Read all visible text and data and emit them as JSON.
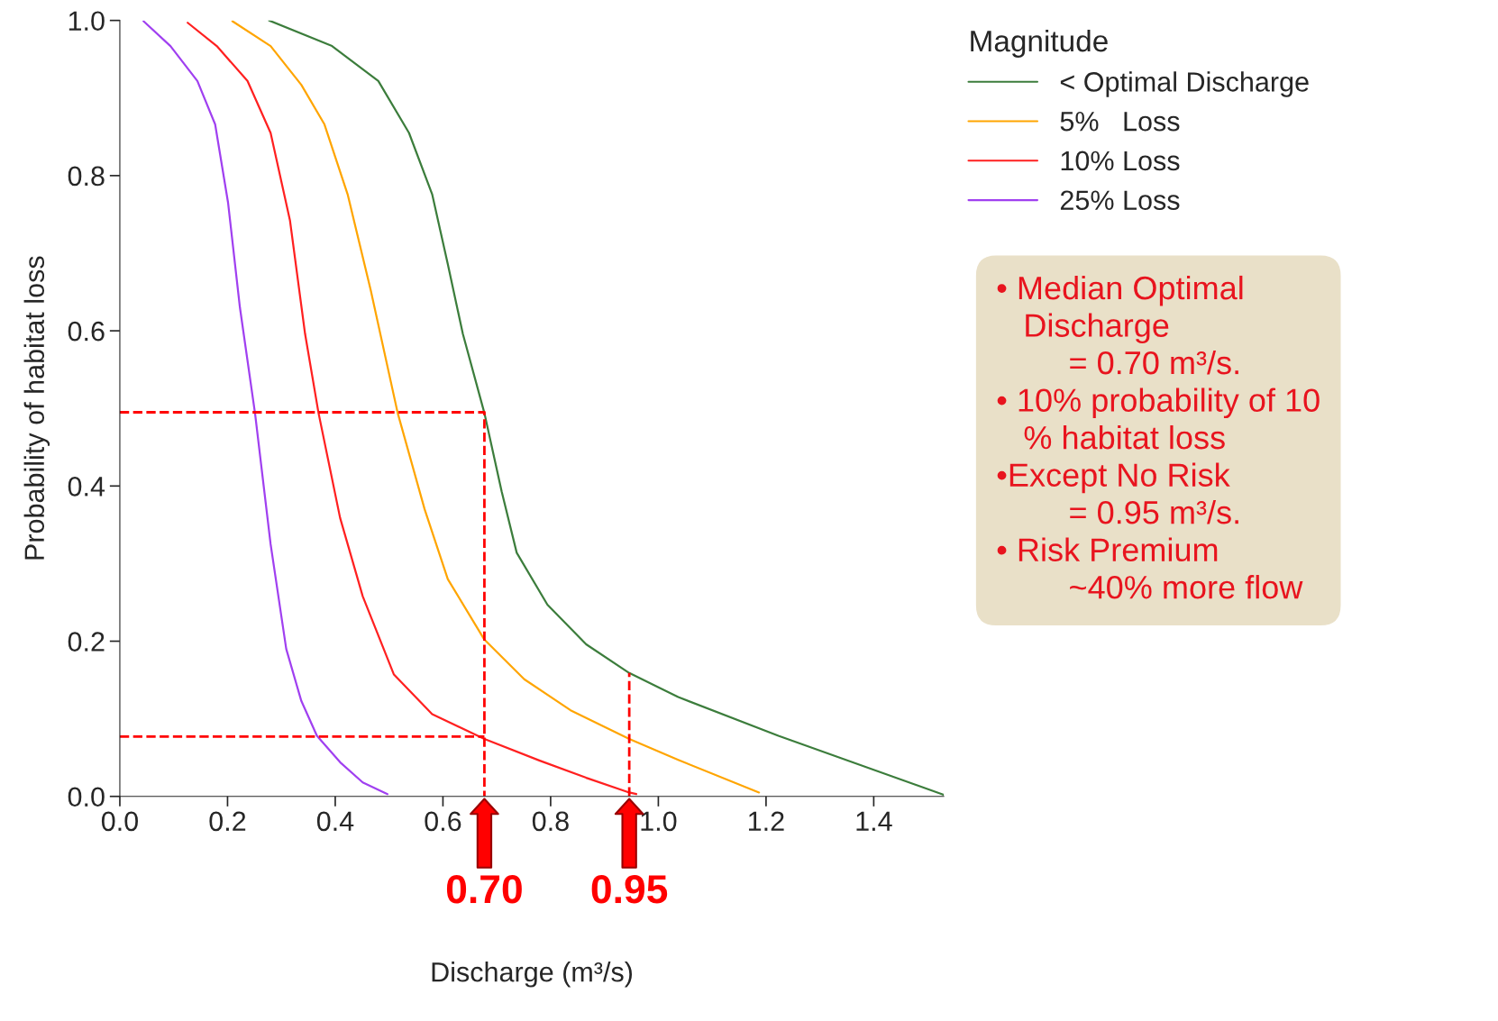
{
  "chart_data": {
    "type": "line",
    "xlabel": "Discharge (m³/s)",
    "ylabel": "Probability of habitat loss",
    "legend_title": "Magnitude",
    "legend": "top right",
    "xlim": [
      0,
      1.53
    ],
    "ylim": [
      0,
      1.0
    ],
    "xticks": [
      {
        "value": 0,
        "label": "0.0"
      },
      {
        "value": 0.2,
        "label": "0.2"
      },
      {
        "value": 0.4,
        "label": "0.4"
      },
      {
        "value": 0.6,
        "label": "0.6"
      },
      {
        "value": 0.8,
        "label": "0.8"
      },
      {
        "value": 1.0,
        "label": "1.0"
      },
      {
        "value": 1.2,
        "label": "1.2"
      },
      {
        "value": 1.4,
        "label": "1.4"
      }
    ],
    "yticks": [
      {
        "value": 0,
        "label": "0.0"
      },
      {
        "value": 0.2,
        "label": "0.2"
      },
      {
        "value": 0.4,
        "label": "0.4"
      },
      {
        "value": 0.6,
        "label": "0.6"
      },
      {
        "value": 0.8,
        "label": "0.8"
      },
      {
        "value": 1.0,
        "label": "1.0"
      }
    ],
    "grid": false,
    "line_style": "solid",
    "series": [
      {
        "name": "< Optimal Discharge",
        "color": "#3c7d3c",
        "x": [
          0.277,
          0.394,
          0.48,
          0.537,
          0.58,
          0.609,
          0.637,
          0.677,
          0.709,
          0.737,
          0.794,
          0.866,
          0.946,
          1.037,
          1.223,
          1.53
        ],
        "values": [
          1.0,
          0.967,
          0.922,
          0.855,
          0.776,
          0.686,
          0.596,
          0.494,
          0.393,
          0.314,
          0.247,
          0.196,
          0.159,
          0.128,
          0.078,
          0.002
        ]
      },
      {
        "name": "5%   Loss",
        "color": "#ffa500",
        "x": [
          0.209,
          0.28,
          0.337,
          0.38,
          0.423,
          0.466,
          0.516,
          0.566,
          0.609,
          0.677,
          0.751,
          0.837,
          0.946,
          1.037,
          1.187
        ],
        "values": [
          0.999,
          0.967,
          0.917,
          0.866,
          0.776,
          0.652,
          0.494,
          0.37,
          0.28,
          0.202,
          0.151,
          0.111,
          0.074,
          0.047,
          0.005
        ]
      },
      {
        "name": "10% Loss",
        "color": "#ff2020",
        "x": [
          0.126,
          0.18,
          0.237,
          0.28,
          0.316,
          0.344,
          0.369,
          0.409,
          0.451,
          0.509,
          0.58,
          0.677,
          0.78,
          0.866,
          0.946,
          0.959
        ],
        "values": [
          0.997,
          0.967,
          0.922,
          0.855,
          0.742,
          0.596,
          0.494,
          0.359,
          0.258,
          0.157,
          0.106,
          0.074,
          0.046,
          0.024,
          0.005,
          0.003
        ]
      },
      {
        "name": "25% Loss",
        "color": "#a040f0",
        "x": [
          0.044,
          0.094,
          0.144,
          0.177,
          0.201,
          0.223,
          0.251,
          0.28,
          0.309,
          0.337,
          0.366,
          0.409,
          0.451,
          0.497
        ],
        "values": [
          0.999,
          0.967,
          0.922,
          0.866,
          0.765,
          0.63,
          0.494,
          0.325,
          0.19,
          0.123,
          0.078,
          0.044,
          0.018,
          0.003
        ]
      },
      {
        "type": "line",
        "line_style": "dashed",
        "color": "#ff0000",
        "x": [
          0,
          0.677,
          0.677
        ],
        "values": [
          0.495,
          0.495,
          0
        ]
      },
      {
        "type": "line",
        "line_style": "dashed",
        "color": "#ff0000",
        "x": [
          0,
          0.677
        ],
        "values": [
          0.077,
          0.077
        ]
      },
      {
        "type": "line",
        "line_style": "dashed",
        "color": "#ff0000",
        "x": [
          0.946,
          0.946
        ],
        "values": [
          0,
          0.159
        ]
      }
    ],
    "annotations": [
      {
        "text": "0.70",
        "x": 0.677,
        "y": 0
      },
      {
        "text": "0.95",
        "x": 0.946,
        "y": 0
      },
      "• Median Optimal\n   Discharge\n        = 0.70 m³/s.",
      "• 10% probability of 10\n   % habitat loss",
      "•Except No Risk\n        = 0.95 m³/s.",
      "• Risk Premium\n        ~40% more flow"
    ]
  }
}
